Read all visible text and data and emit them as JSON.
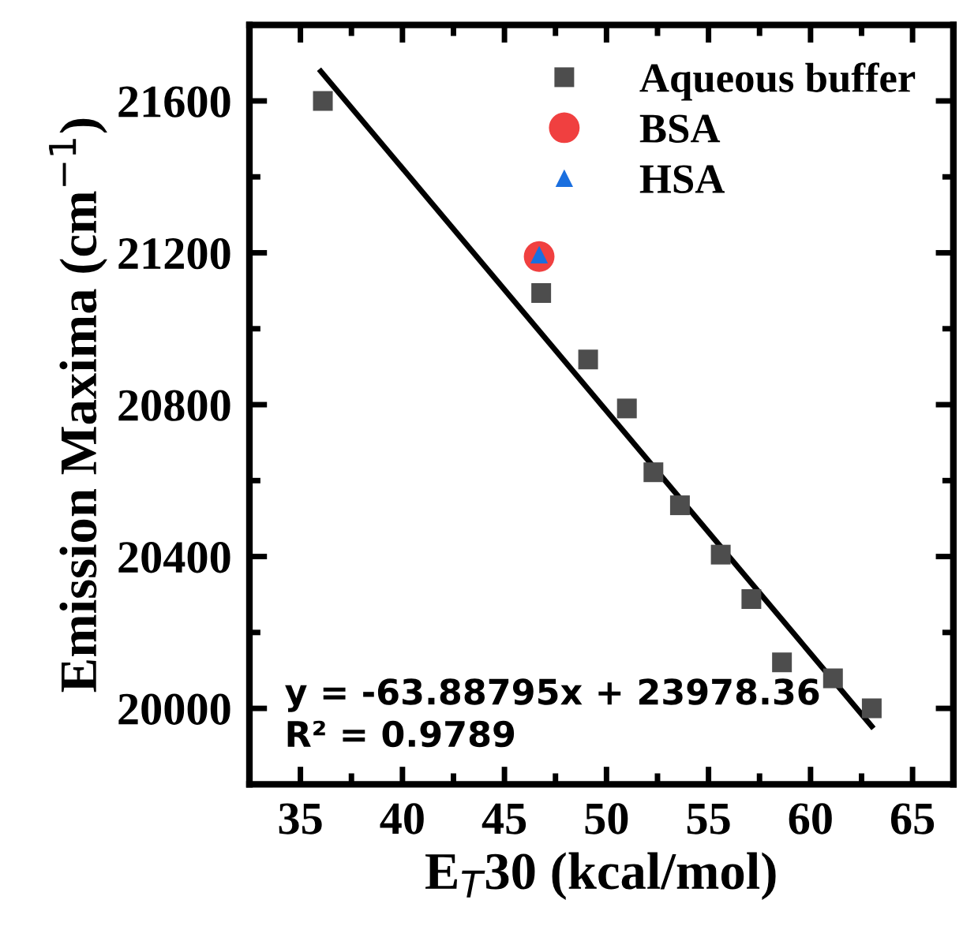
{
  "chart_data": {
    "type": "scatter",
    "xlabel": "E$_{T}$30 (kcal/mol)",
    "ylabel": "Emission Maxima (cm$^{−1}$)",
    "xlim": [
      32.5,
      67
    ],
    "ylim": [
      19800,
      21800
    ],
    "xticks": [
      35,
      40,
      45,
      50,
      55,
      60,
      65
    ],
    "yticks": [
      20000,
      20400,
      20800,
      21200,
      21600
    ],
    "grid": false,
    "legend": "top right",
    "series": [
      {
        "name": "Aqueous buffer",
        "color": "#4d4d4d",
        "marker": "square",
        "x": [
          36.1,
          46.8,
          49.1,
          51.0,
          52.3,
          53.6,
          55.6,
          57.1,
          58.6,
          61.1,
          63.0
        ],
        "values": [
          21600,
          21094,
          20919,
          20790,
          20622,
          20535,
          20405,
          20288,
          20121,
          20079,
          20000
        ]
      },
      {
        "name": "BSA",
        "color": "#f04040",
        "marker": "circle",
        "x": [
          46.7
        ],
        "values": [
          21190
        ]
      },
      {
        "name": "HSA",
        "color": "#1a6fdf",
        "marker": "triangle",
        "x": [
          46.7
        ],
        "values": [
          21195
        ]
      },
      {
        "type": "line",
        "color": "#000000",
        "marker": "none",
        "line_style": "solid",
        "x": [
          36.0,
          63.0
        ],
        "values": [
          21678,
          19953
        ]
      }
    ],
    "annotations": [
      "y = -63.88795x + 23978.36\nR² = 0.9789"
    ]
  }
}
